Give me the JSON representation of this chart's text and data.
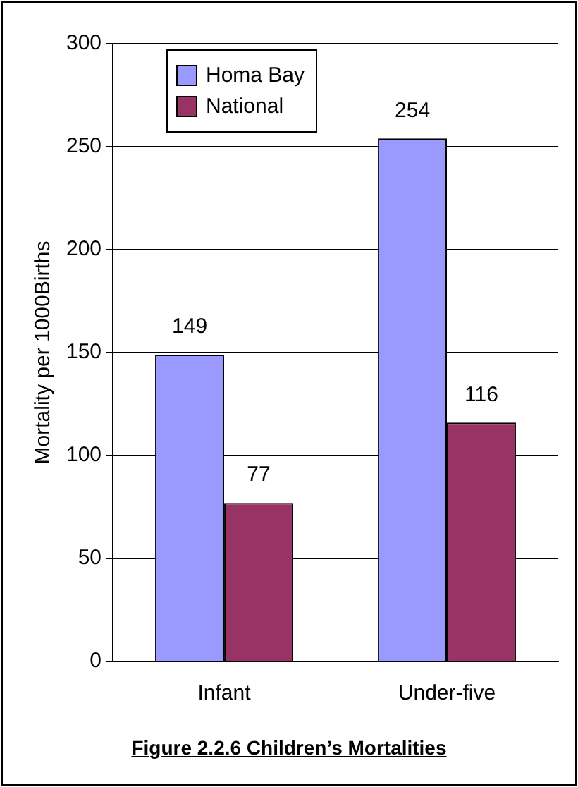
{
  "chart_data": {
    "type": "bar",
    "ylabel": "Mortality per 1000Births",
    "categories": [
      "Infant",
      "Under-five"
    ],
    "series": [
      {
        "name": "Homa Bay",
        "color": "#9999ff",
        "values": [
          149,
          254
        ]
      },
      {
        "name": "National",
        "color": "#993366",
        "values": [
          77,
          116
        ]
      }
    ],
    "ylim": [
      0,
      300
    ],
    "yticks": [
      0,
      50,
      100,
      150,
      200,
      250,
      300
    ],
    "grid": "y",
    "legend": "top left",
    "data_labels": true,
    "annotations": [
      "Figure 2.2.6 Children’s Mortalities"
    ]
  }
}
